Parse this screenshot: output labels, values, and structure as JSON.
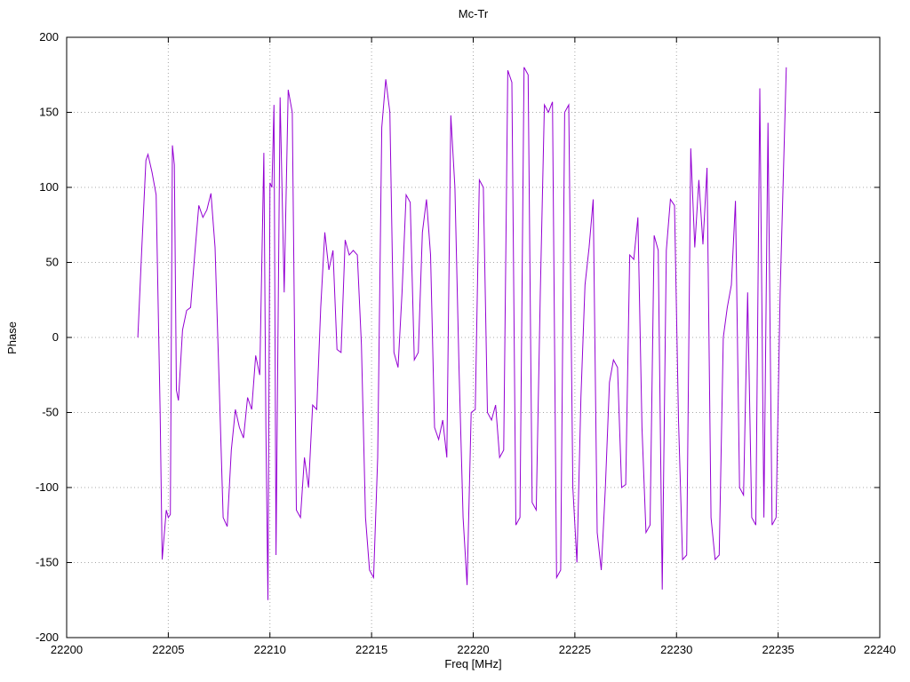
{
  "chart_data": {
    "type": "line",
    "title": "Mc-Tr",
    "xlabel": "Freq [MHz]",
    "ylabel": "Phase",
    "xlim": [
      22200,
      22240
    ],
    "ylim": [
      -200,
      200
    ],
    "xticks": [
      22200,
      22205,
      22210,
      22215,
      22220,
      22225,
      22230,
      22235,
      22240
    ],
    "yticks": [
      -200,
      -150,
      -100,
      -50,
      0,
      50,
      100,
      150,
      200
    ],
    "grid": true,
    "legend": "none",
    "line_color": "#9400d3",
    "series": [
      {
        "name": "Mc-Tr",
        "x": [
          22203.5,
          22203.7,
          22203.9,
          22204.0,
          22204.2,
          22204.4,
          22204.6,
          22204.7,
          22204.9,
          22205.0,
          22205.1,
          22205.2,
          22205.3,
          22205.4,
          22205.5,
          22205.7,
          22205.9,
          22206.1,
          22206.3,
          22206.5,
          22206.7,
          22206.9,
          22207.1,
          22207.3,
          22207.5,
          22207.7,
          22207.9,
          22208.1,
          22208.3,
          22208.5,
          22208.7,
          22208.9,
          22209.1,
          22209.3,
          22209.5,
          22209.7,
          22209.8,
          22209.9,
          22210.0,
          22210.1,
          22210.2,
          22210.3,
          22210.5,
          22210.7,
          22210.9,
          22211.1,
          22211.3,
          22211.5,
          22211.7,
          22211.9,
          22212.1,
          22212.3,
          22212.5,
          22212.7,
          22212.9,
          22213.1,
          22213.3,
          22213.5,
          22213.7,
          22213.9,
          22214.1,
          22214.3,
          22214.5,
          22214.7,
          22214.9,
          22215.1,
          22215.3,
          22215.5,
          22215.7,
          22215.9,
          22216.1,
          22216.3,
          22216.5,
          22216.7,
          22216.9,
          22217.1,
          22217.3,
          22217.5,
          22217.7,
          22217.9,
          22218.1,
          22218.3,
          22218.5,
          22218.7,
          22218.9,
          22219.1,
          22219.3,
          22219.5,
          22219.7,
          22219.9,
          22220.1,
          22220.3,
          22220.5,
          22220.7,
          22220.9,
          22221.1,
          22221.3,
          22221.5,
          22221.7,
          22221.9,
          22222.1,
          22222.3,
          22222.5,
          22222.7,
          22222.9,
          22223.1,
          22223.3,
          22223.5,
          22223.7,
          22223.9,
          22224.1,
          22224.3,
          22224.5,
          22224.7,
          22224.9,
          22225.1,
          22225.3,
          22225.5,
          22225.7,
          22225.9,
          22226.1,
          22226.3,
          22226.5,
          22226.7,
          22226.9,
          22227.1,
          22227.3,
          22227.5,
          22227.7,
          22227.9,
          22228.1,
          22228.3,
          22228.5,
          22228.7,
          22228.9,
          22229.1,
          22229.3,
          22229.5,
          22229.7,
          22229.9,
          22230.1,
          22230.3,
          22230.5,
          22230.7,
          22230.9,
          22231.1,
          22231.3,
          22231.5,
          22231.7,
          22231.9,
          22232.1,
          22232.3,
          22232.5,
          22232.7,
          22232.9,
          22233.1,
          22233.3,
          22233.5,
          22233.7,
          22233.9,
          22234.1,
          22234.3,
          22234.5,
          22234.7,
          22234.9,
          22235.1,
          22235.4
        ],
        "y": [
          0,
          60,
          118,
          122,
          110,
          95,
          -50,
          -148,
          -115,
          -120,
          -118,
          128,
          115,
          -35,
          -42,
          5,
          18,
          20,
          55,
          88,
          80,
          85,
          96,
          60,
          -30,
          -120,
          -126,
          -75,
          -48,
          -60,
          -67,
          -40,
          -48,
          -12,
          -25,
          123,
          -60,
          -175,
          103,
          100,
          155,
          -145,
          160,
          30,
          165,
          150,
          -115,
          -120,
          -80,
          -100,
          -45,
          -48,
          20,
          70,
          45,
          58,
          -8,
          -10,
          65,
          55,
          58,
          55,
          -5,
          -120,
          -155,
          -160,
          -80,
          140,
          172,
          150,
          -10,
          -20,
          30,
          95,
          90,
          -15,
          -10,
          70,
          92,
          55,
          -60,
          -68,
          -55,
          -80,
          148,
          100,
          -20,
          -120,
          -165,
          -50,
          -48,
          105,
          100,
          -50,
          -55,
          -45,
          -80,
          -75,
          178,
          170,
          -125,
          -120,
          180,
          175,
          -110,
          -115,
          30,
          155,
          150,
          157,
          -160,
          -155,
          150,
          155,
          -100,
          -150,
          -40,
          35,
          60,
          92,
          -130,
          -155,
          -100,
          -30,
          -15,
          -20,
          -100,
          -98,
          55,
          52,
          80,
          -60,
          -130,
          -125,
          68,
          58,
          -168,
          58,
          92,
          88,
          -55,
          -148,
          -145,
          126,
          60,
          105,
          62,
          113,
          -120,
          -148,
          -145,
          0,
          20,
          35,
          91,
          -100,
          -105,
          30,
          -120,
          -125,
          166,
          -120,
          143,
          -125,
          -120,
          30,
          180
        ]
      }
    ]
  }
}
